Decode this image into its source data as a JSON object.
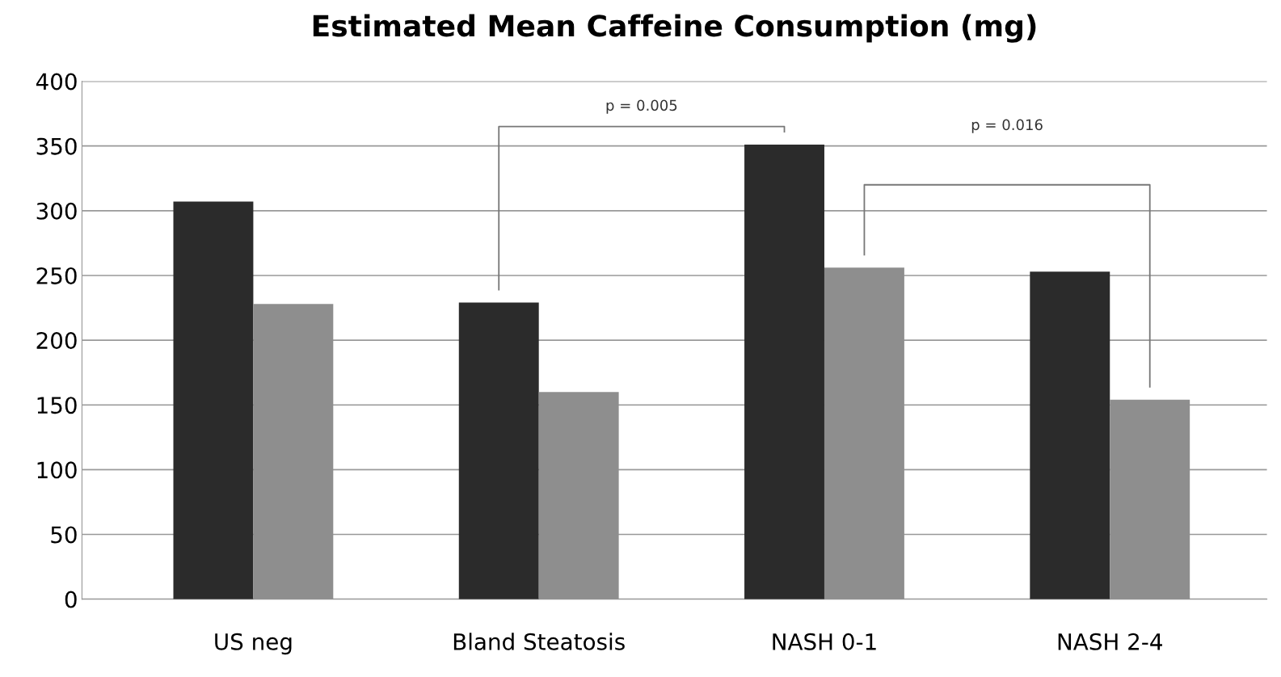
{
  "chart_data": {
    "type": "bar",
    "title": "Estimated Mean Caffeine Consumption (mg)",
    "categories": [
      "US neg",
      "Bland Steatosis",
      "NASH 0-1",
      "NASH 2-4"
    ],
    "series": [
      {
        "color": "#2b2b2b",
        "values": [
          307,
          229,
          351,
          253
        ]
      },
      {
        "color": "#8e8e8e",
        "values": [
          228,
          160,
          256,
          154
        ]
      }
    ],
    "ylim": [
      0,
      400
    ],
    "yticks": [
      0,
      50,
      100,
      150,
      200,
      250,
      300,
      350,
      400
    ],
    "grid": "y",
    "legend": false,
    "annotations": [
      "p = 0.005",
      "p = 0.016"
    ]
  }
}
